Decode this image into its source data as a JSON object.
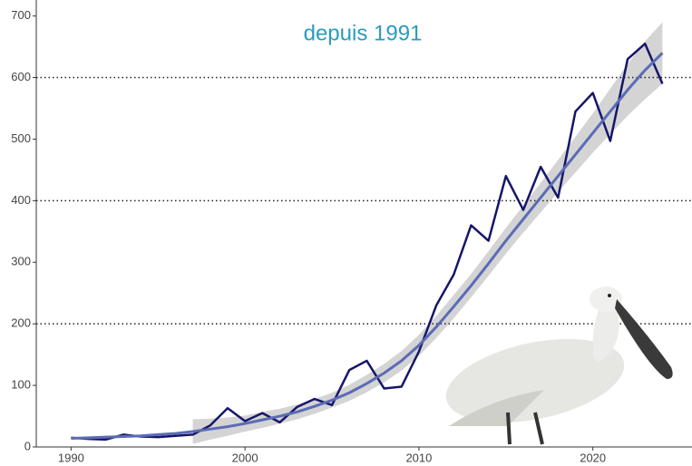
{
  "chart_data": {
    "type": "line",
    "title": "depuis 1991",
    "x": [
      1990,
      1991,
      1992,
      1993,
      1994,
      1995,
      1996,
      1997,
      1998,
      1999,
      2000,
      2001,
      2002,
      2003,
      2004,
      2005,
      2006,
      2007,
      2008,
      2009,
      2010,
      2011,
      2012,
      2013,
      2014,
      2015,
      2016,
      2017,
      2018,
      2019,
      2020,
      2021,
      2022,
      2023,
      2024
    ],
    "series": [
      {
        "color": "#15166a",
        "values": [
          15,
          13,
          12,
          20,
          17,
          16,
          18,
          20,
          35,
          63,
          42,
          55,
          40,
          65,
          78,
          68,
          125,
          140,
          95,
          98,
          155,
          230,
          280,
          360,
          335,
          440,
          385,
          455,
          405,
          545,
          575,
          497,
          630,
          655,
          590
        ]
      },
      {
        "color": "#5b6bb5",
        "values": [
          14,
          15,
          16,
          17,
          18,
          20,
          22,
          25,
          29,
          33,
          38,
          44,
          50,
          57,
          66,
          76,
          88,
          103,
          120,
          140,
          165,
          195,
          228,
          262,
          298,
          335,
          370,
          405,
          440,
          475,
          510,
          545,
          580,
          612,
          640
        ]
      }
    ],
    "band": {
      "color": "#d4d4d4",
      "lower": [
        null,
        null,
        null,
        null,
        null,
        null,
        null,
        5,
        12,
        18,
        25,
        31,
        38,
        45,
        54,
        64,
        75,
        89,
        105,
        124,
        148,
        177,
        209,
        243,
        278,
        314,
        348,
        381,
        414,
        446,
        478,
        508,
        538,
        565,
        590
      ],
      "upper": [
        null,
        null,
        null,
        null,
        null,
        null,
        null,
        45,
        46,
        48,
        51,
        57,
        62,
        69,
        78,
        88,
        101,
        117,
        135,
        156,
        182,
        213,
        247,
        281,
        318,
        356,
        392,
        429,
        466,
        504,
        542,
        582,
        622,
        659,
        690
      ]
    },
    "xlim": [
      1988,
      2025.7
    ],
    "xticks": [
      1990,
      2000,
      2010,
      2020
    ],
    "ylim": [
      0,
      726
    ],
    "yticks": [
      0,
      100,
      200,
      300,
      400,
      500,
      600,
      700
    ],
    "hlines": [
      200,
      400,
      600
    ]
  }
}
